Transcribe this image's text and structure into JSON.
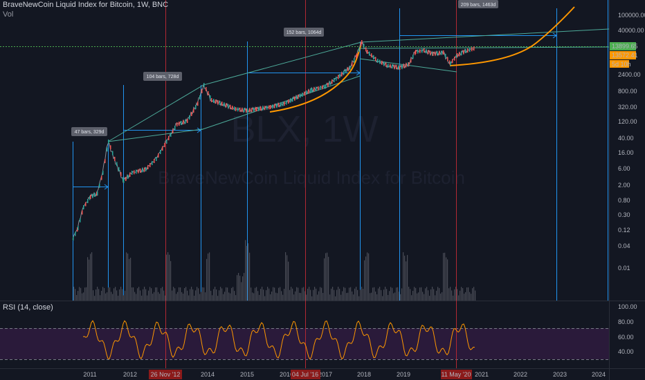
{
  "header": {
    "title": "BraveNewCoin Liquid Index for Bitcoin, 1W, BNC",
    "volume_label": "Vol"
  },
  "watermark": {
    "ticker": "BLX, 1W",
    "name": "BraveNewCoin Liquid Index for Bitcoin"
  },
  "rsi": {
    "label": "RSI (14, close)",
    "ticks": [
      "100.00",
      "80.00",
      "60.00",
      "40.00"
    ]
  },
  "price_axis": {
    "ticks": [
      "100000.00",
      "40000.00",
      "2400.00",
      "800.00",
      "320.00",
      "120.00",
      "40.00",
      "16.00",
      "6.00",
      "2.00",
      "0.80",
      "0.30",
      "0.12",
      "0.04",
      "0.01"
    ],
    "last_price": "13899.65",
    "last_close": "13572.41",
    "countdown": "5d 10h",
    "colors": {
      "last_price_bg": "#4caf50",
      "last_close_bg": "#ff9800",
      "curve": "#ff9800",
      "measure": "#2196f3",
      "trend": "#4dab9a",
      "rsi": "#ff9800",
      "halving": "#b22833"
    }
  },
  "time_axis": {
    "years": [
      "2011",
      "2012",
      "2014",
      "2015",
      "2016",
      "2017",
      "2018",
      "2019",
      "2021",
      "2022",
      "2023",
      "2024"
    ],
    "halving_dates": [
      "26 Nov '12",
      "04 Jul '16",
      "11 May '20"
    ]
  },
  "measure_labels": [
    "47 bars, 329d",
    "104 bars, 728d",
    "152 bars, 1064d",
    "209 bars, 1463d"
  ]
}
